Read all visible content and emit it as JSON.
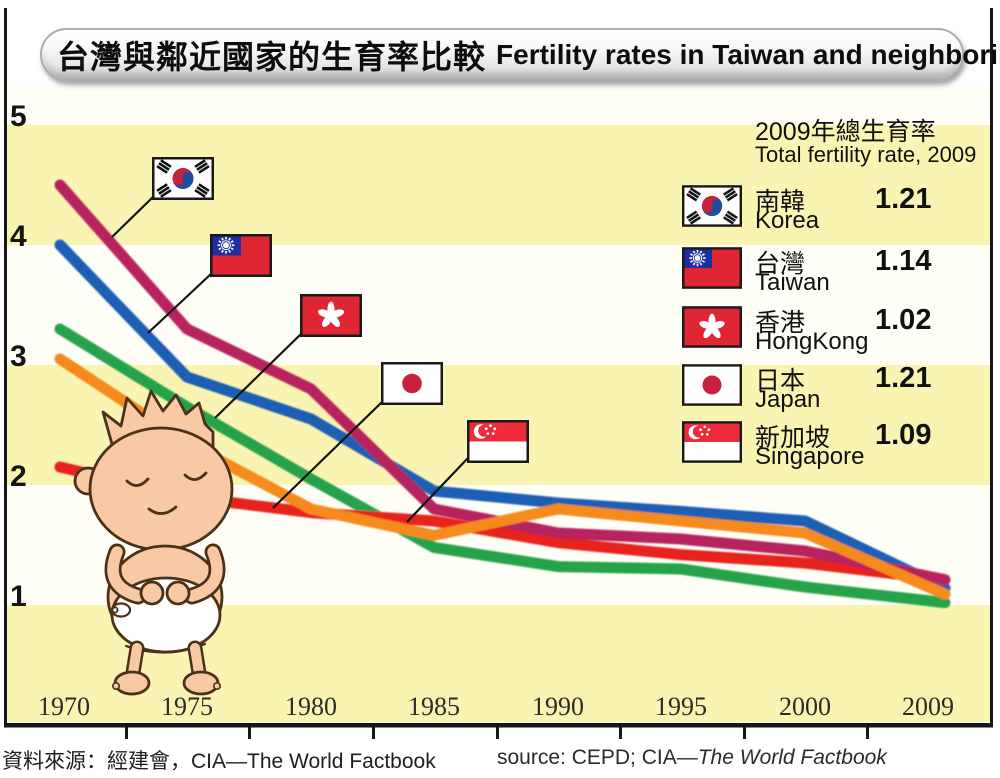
{
  "title": {
    "zh": "台灣與鄰近國家的生育率比較",
    "en": "Fertility rates in Taiwan and neighboring nations"
  },
  "legend": {
    "title_zh": "2009年總生育率",
    "title_en": "Total fertility rate, 2009"
  },
  "source": {
    "zh": "資料來源：經建會，CIA—The World Factbook",
    "en_prefix": "source: CEPD; CIA—",
    "en_italic": "The World Factbook"
  },
  "colors": {
    "stripe_yellow": "#FAF4B2",
    "stripe_white": "#FEFEF6",
    "axis": "#161616",
    "callout_line": "#111111"
  },
  "chart_data": {
    "type": "line",
    "x_labels": [
      "1970",
      "1975",
      "1980",
      "1985",
      "1990",
      "1995",
      "2000",
      "2009"
    ],
    "y_ticks": [
      "5",
      "4",
      "3",
      "2",
      "1"
    ],
    "ylim": [
      1,
      5
    ],
    "grid": "striped-bands",
    "legend_position": "top-right",
    "series": [
      {
        "id": "korea",
        "label_zh": "南韓",
        "label_en": "Korea",
        "flag": "korea",
        "color": "#B8205F",
        "values": [
          4.5,
          3.3,
          2.8,
          1.8,
          1.6,
          1.55,
          1.45,
          1.21
        ],
        "fertility_2009": "1.21"
      },
      {
        "id": "taiwan",
        "label_zh": "台灣",
        "label_en": "Taiwan",
        "flag": "taiwan",
        "color": "#1F5EB5",
        "values": [
          4.0,
          2.9,
          2.55,
          1.95,
          1.85,
          1.78,
          1.7,
          1.14
        ],
        "fertility_2009": "1.14"
      },
      {
        "id": "hongkong",
        "label_zh": "香港",
        "label_en": "HongKong",
        "flag": "hongkong",
        "color": "#27A24B",
        "values": [
          3.3,
          2.65,
          2.05,
          1.48,
          1.32,
          1.3,
          1.15,
          1.02
        ],
        "fertility_2009": "1.02"
      },
      {
        "id": "japan",
        "label_zh": "日本",
        "label_en": "Japan",
        "flag": "japan",
        "color": "#E8231C",
        "values": [
          2.15,
          1.9,
          1.77,
          1.7,
          1.52,
          1.42,
          1.35,
          1.21
        ],
        "fertility_2009": "1.21"
      },
      {
        "id": "singapore",
        "label_zh": "新加坡",
        "label_en": "Singapore",
        "flag": "singapore",
        "color": "#F68A1E",
        "values": [
          3.05,
          2.35,
          1.8,
          1.58,
          1.8,
          1.7,
          1.6,
          1.09
        ],
        "fertility_2009": "1.09"
      }
    ]
  }
}
